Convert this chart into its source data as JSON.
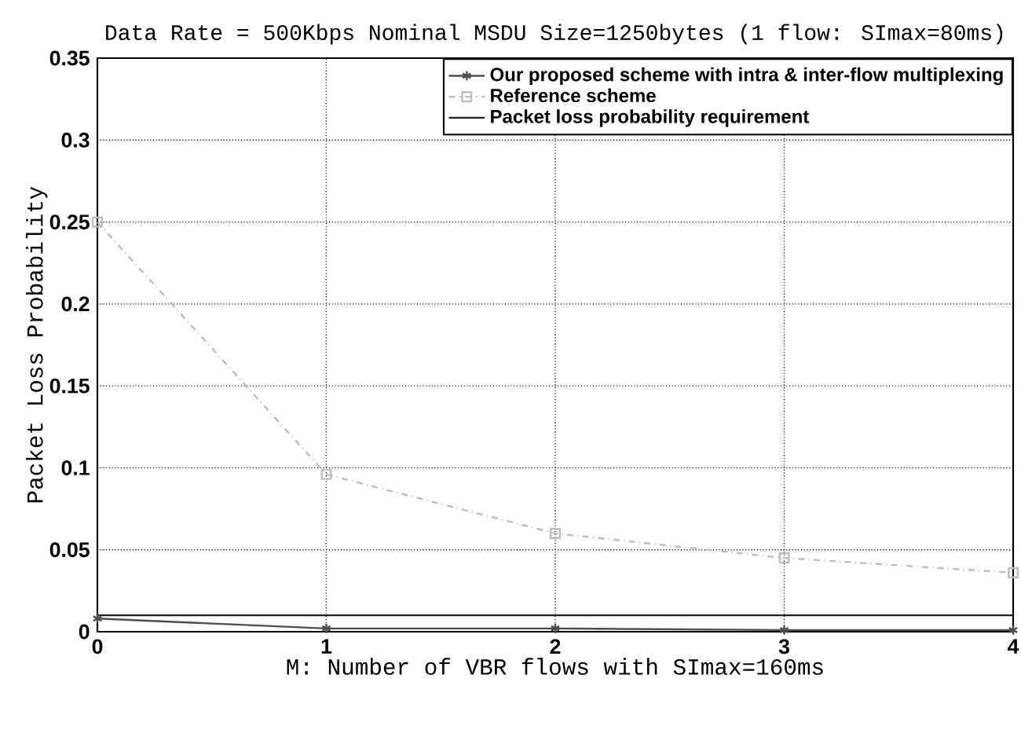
{
  "chart_data": {
    "type": "line",
    "title": "Data Rate = 500Kbps Nominal MSDU Size=1250bytes (1 flow: SImax=80ms)",
    "xlabel": "M: Number of VBR flows with SImax=160ms",
    "ylabel": "Packet Loss Probability",
    "x": [
      0,
      1,
      2,
      3,
      4
    ],
    "series": [
      {
        "name": "Our proposed scheme with intra & inter-flow multiplexing",
        "color": "#4d4d4d",
        "marker": "cross",
        "line_style": "solid",
        "values": [
          0.008,
          0.002,
          0.002,
          0.001,
          0.001
        ]
      },
      {
        "name": "Reference scheme",
        "color": "#bdbdbd",
        "marker": "square",
        "line_style": "dashdot",
        "values": [
          0.25,
          0.096,
          0.06,
          0.045,
          0.036
        ]
      },
      {
        "name": "Packet loss probability requirement",
        "color": "#222222",
        "marker": "none",
        "line_style": "solid",
        "values": [
          0.01,
          0.01,
          0.01,
          0.01,
          0.01
        ]
      }
    ],
    "xlim": [
      0,
      4
    ],
    "ylim": [
      0,
      0.35
    ],
    "xticks": [
      0,
      1,
      2,
      3,
      4
    ],
    "yticks": [
      0,
      0.05,
      0.1,
      0.15,
      0.2,
      0.25,
      0.3,
      0.35
    ],
    "grid": true,
    "legend": "top right"
  }
}
